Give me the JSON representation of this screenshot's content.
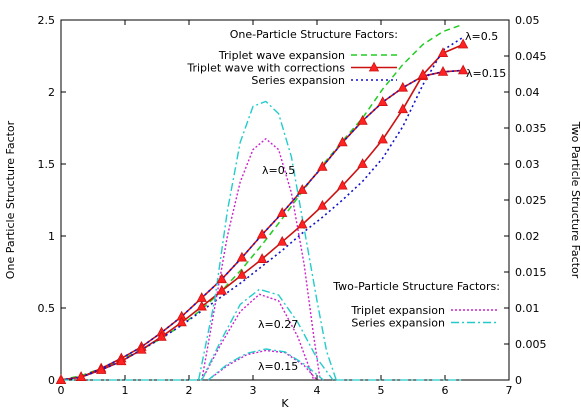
{
  "chart_data": {
    "type": "line",
    "xlabel": "K",
    "ylabel": "One Particle Structure Factor",
    "y2label": "Two Particle Structure Factor",
    "xlim": [
      0,
      7
    ],
    "ylim": [
      0,
      2.5
    ],
    "y2lim": [
      0,
      0.05
    ],
    "xticks": [
      0,
      1,
      2,
      3,
      4,
      5,
      6,
      7
    ],
    "yticks": [
      0,
      0.5,
      1,
      1.5,
      2,
      2.5
    ],
    "y2ticks": [
      0,
      0.005,
      0.01,
      0.015,
      0.02,
      0.025,
      0.03,
      0.035,
      0.04,
      0.045,
      0.05
    ],
    "legend_one_title": "One-Particle Structure Factors:",
    "legend_two_title": "Two-Particle Structure Factors:",
    "legend_one": [
      {
        "label": "Triplet wave expansion",
        "color": "#22cc22",
        "style": "dashed"
      },
      {
        "label": "Triplet wave with corrections",
        "color": "#cc1111",
        "style": "solid-triangles"
      },
      {
        "label": "Series expansion",
        "color": "#1111cc",
        "style": "dotted"
      }
    ],
    "legend_two": [
      {
        "label": "Triplet expansion",
        "color": "#cc22cc",
        "style": "dotted"
      },
      {
        "label": "Series expansion",
        "color": "#22cccc",
        "style": "dashdot"
      }
    ],
    "annotations": {
      "one_a": "λ=0.5",
      "one_b": "λ=0.15",
      "two_a": "λ=0.5",
      "two_b": "λ=0.27",
      "two_c": "λ=0.15"
    },
    "series": [
      {
        "style": "triplet",
        "x": [
          0,
          0.314,
          0.628,
          0.942,
          1.257,
          1.571,
          1.885,
          2.199,
          2.513,
          2.827,
          3.142,
          3.456,
          3.77,
          4.084,
          4.398,
          4.712,
          5.027,
          5.341,
          5.655,
          5.969,
          6.283
        ],
        "y": [
          0,
          0.03,
          0.08,
          0.14,
          0.21,
          0.29,
          0.38,
          0.49,
          0.62,
          0.77,
          0.94,
          1.12,
          1.31,
          1.49,
          1.66,
          1.82,
          2.02,
          2.19,
          2.33,
          2.42,
          2.47
        ]
      },
      {
        "style": "corrections",
        "x": [
          0,
          0.314,
          0.628,
          0.942,
          1.257,
          1.571,
          1.885,
          2.199,
          2.513,
          2.827,
          3.142,
          3.456,
          3.77,
          4.084,
          4.398,
          4.712,
          5.027,
          5.341,
          5.655,
          5.969,
          6.283
        ],
        "y": [
          0,
          0.02,
          0.08,
          0.15,
          0.23,
          0.33,
          0.44,
          0.57,
          0.7,
          0.85,
          1.01,
          1.16,
          1.32,
          1.48,
          1.65,
          1.8,
          1.93,
          2.03,
          2.11,
          2.14,
          2.15
        ]
      },
      {
        "style": "series",
        "x": [
          0,
          0.314,
          0.628,
          0.942,
          1.257,
          1.571,
          1.885,
          2.199,
          2.513,
          2.827,
          3.142,
          3.456,
          3.77,
          4.084,
          4.398,
          4.712,
          5.027,
          5.341,
          5.655,
          5.969,
          6.283
        ],
        "y": [
          0,
          0.02,
          0.08,
          0.15,
          0.23,
          0.33,
          0.44,
          0.57,
          0.7,
          0.85,
          1.01,
          1.16,
          1.32,
          1.48,
          1.65,
          1.8,
          1.93,
          2.03,
          2.11,
          2.14,
          2.15
        ]
      },
      {
        "style": "corrections",
        "x": [
          0,
          0.314,
          0.628,
          0.942,
          1.257,
          1.571,
          1.885,
          2.199,
          2.513,
          2.827,
          3.142,
          3.456,
          3.77,
          4.084,
          4.398,
          4.712,
          5.027,
          5.341,
          5.655,
          5.969,
          6.283
        ],
        "y": [
          0,
          0.02,
          0.07,
          0.13,
          0.21,
          0.3,
          0.4,
          0.51,
          0.62,
          0.73,
          0.84,
          0.96,
          1.08,
          1.21,
          1.35,
          1.5,
          1.67,
          1.88,
          2.12,
          2.27,
          2.33
        ]
      },
      {
        "style": "series",
        "x": [
          0,
          0.314,
          0.628,
          0.942,
          1.257,
          1.571,
          1.885,
          2.199,
          2.513,
          2.827,
          3.142,
          3.456,
          3.77,
          4.084,
          4.398,
          4.712,
          5.027,
          5.341,
          5.655,
          5.969,
          6.283
        ],
        "y": [
          0,
          0.02,
          0.07,
          0.13,
          0.21,
          0.29,
          0.38,
          0.48,
          0.58,
          0.68,
          0.79,
          0.9,
          1.02,
          1.13,
          1.25,
          1.38,
          1.54,
          1.76,
          2.05,
          2.29,
          2.38
        ]
      },
      {
        "style": "triplet2",
        "axis": "y2",
        "x": [
          2.2,
          2.4,
          2.6,
          2.8,
          3.0,
          3.2,
          3.4,
          3.6,
          3.8,
          3.95,
          4.05
        ],
        "y": [
          0,
          0.01,
          0.02,
          0.0275,
          0.032,
          0.0335,
          0.032,
          0.026,
          0.016,
          0.006,
          0
        ]
      },
      {
        "style": "series2",
        "axis": "y2",
        "x": [
          2.15,
          2.4,
          2.6,
          2.8,
          3.0,
          3.2,
          3.4,
          3.6,
          3.8,
          4.0,
          4.15,
          4.3
        ],
        "y": [
          0,
          0.011,
          0.0235,
          0.033,
          0.038,
          0.0387,
          0.037,
          0.031,
          0.021,
          0.011,
          0.004,
          0
        ]
      },
      {
        "style": "triplet2",
        "axis": "y2",
        "x": [
          2.2,
          2.5,
          2.8,
          3.1,
          3.4,
          3.7,
          3.95
        ],
        "y": [
          0,
          0.005,
          0.0095,
          0.0119,
          0.011,
          0.006,
          0
        ]
      },
      {
        "style": "series2",
        "axis": "y2",
        "x": [
          2.2,
          2.5,
          2.8,
          3.1,
          3.4,
          3.7,
          4.0,
          4.25
        ],
        "y": [
          0,
          0.0055,
          0.0105,
          0.0126,
          0.0118,
          0.008,
          0.003,
          0
        ]
      },
      {
        "style": "triplet2",
        "axis": "y2",
        "x": [
          2.3,
          2.6,
          2.9,
          3.2,
          3.5,
          3.8,
          4.0
        ],
        "y": [
          0,
          0.002,
          0.0035,
          0.0041,
          0.0038,
          0.002,
          0
        ]
      },
      {
        "style": "series2",
        "axis": "y2",
        "x": [
          2.3,
          2.6,
          2.9,
          3.2,
          3.5,
          3.8,
          4.1
        ],
        "y": [
          0,
          0.0022,
          0.0037,
          0.0043,
          0.0039,
          0.0022,
          0
        ]
      },
      {
        "style": "flat",
        "axis": "y2",
        "x": [
          0,
          2.2
        ],
        "y": [
          0,
          0
        ]
      },
      {
        "style": "flat",
        "axis": "y2",
        "x": [
          4.3,
          6.3
        ],
        "y": [
          0,
          0
        ]
      }
    ]
  }
}
